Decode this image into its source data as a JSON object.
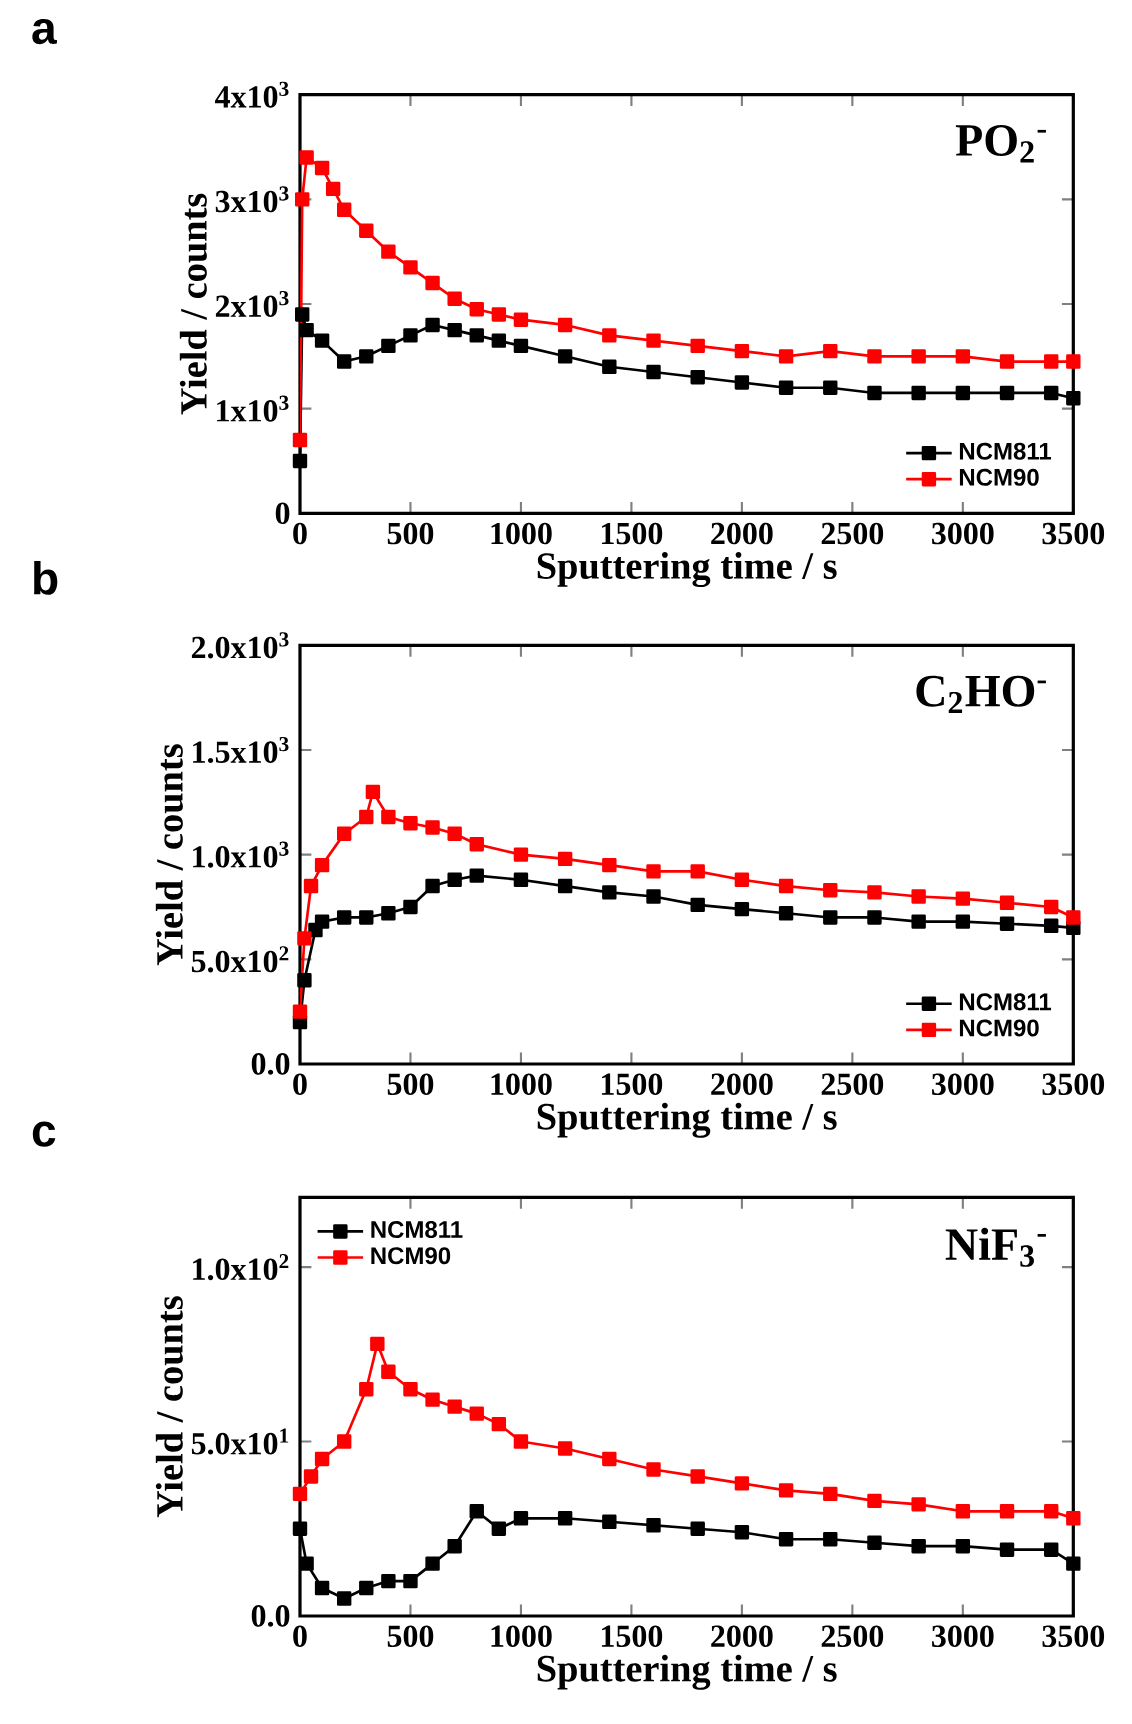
{
  "chart_data": [
    {
      "type": "line",
      "title": "a",
      "xlabel": "Sputtering time / s",
      "ylabel": "Yield / counts",
      "annotations": [
        "PO$_{2}$$^{-}$"
      ],
      "marker": "square",
      "line_style": "solid",
      "legend": "bottom right",
      "xlim": [
        0,
        3500
      ],
      "xticks": [
        0,
        500,
        1000,
        1500,
        2000,
        2500,
        3000,
        3500
      ],
      "ylim": [
        0,
        4000
      ],
      "yticks": [
        {
          "value": 0,
          "label": "0"
        },
        {
          "value": 1000,
          "label": "1x10$^{3}$"
        },
        {
          "value": 2000,
          "label": "2x10$^{3}$"
        },
        {
          "value": 3000,
          "label": "3x10$^{3}$"
        },
        {
          "value": 4000,
          "label": "4x10$^{3}$"
        }
      ],
      "series": [
        {
          "name": "NCM811",
          "color": "#000000",
          "x": [
            0,
            10,
            30,
            100,
            200,
            300,
            400,
            500,
            600,
            700,
            800,
            900,
            1000,
            1200,
            1400,
            1600,
            1800,
            2000,
            2200,
            2400,
            2600,
            2800,
            3000,
            3200,
            3400,
            3500
          ],
          "values": [
            500,
            1900,
            1750,
            1650,
            1450,
            1500,
            1600,
            1700,
            1800,
            1750,
            1700,
            1650,
            1600,
            1500,
            1400,
            1350,
            1300,
            1250,
            1200,
            1200,
            1150,
            1150,
            1150,
            1150,
            1150,
            1100
          ]
        },
        {
          "name": "NCM90",
          "color": "#ff0000",
          "x": [
            0,
            10,
            30,
            100,
            150,
            200,
            300,
            400,
            500,
            600,
            700,
            800,
            900,
            1000,
            1200,
            1400,
            1600,
            1800,
            2000,
            2200,
            2400,
            2600,
            2800,
            3000,
            3200,
            3400,
            3500
          ],
          "values": [
            700,
            3000,
            3400,
            3300,
            3100,
            2900,
            2700,
            2500,
            2350,
            2200,
            2050,
            1950,
            1900,
            1850,
            1800,
            1700,
            1650,
            1600,
            1550,
            1500,
            1550,
            1500,
            1500,
            1500,
            1450,
            1450,
            1450
          ]
        }
      ]
    },
    {
      "type": "line",
      "title": "b",
      "xlabel": "Sputtering time / s",
      "ylabel": "Yield / counts",
      "annotations": [
        "C$_{2}$HO$^{-}$"
      ],
      "marker": "square",
      "line_style": "solid",
      "legend": "bottom right",
      "xlim": [
        0,
        3500
      ],
      "xticks": [
        0,
        500,
        1000,
        1500,
        2000,
        2500,
        3000,
        3500
      ],
      "ylim": [
        0,
        2000
      ],
      "yticks": [
        {
          "value": 0,
          "label": "0.0"
        },
        {
          "value": 500,
          "label": "5.0x10$^{2}$"
        },
        {
          "value": 1000,
          "label": "1.0x10$^{3}$"
        },
        {
          "value": 1500,
          "label": "1.5x10$^{3}$"
        },
        {
          "value": 2000,
          "label": "2.0x10$^{3}$"
        }
      ],
      "series": [
        {
          "name": "NCM811",
          "color": "#000000",
          "x": [
            0,
            20,
            70,
            100,
            200,
            300,
            400,
            500,
            600,
            700,
            800,
            1000,
            1200,
            1400,
            1600,
            1800,
            2000,
            2200,
            2400,
            2600,
            2800,
            3000,
            3200,
            3400,
            3500
          ],
          "values": [
            200,
            400,
            640,
            680,
            700,
            700,
            720,
            750,
            850,
            880,
            900,
            880,
            850,
            820,
            800,
            760,
            740,
            720,
            700,
            700,
            680,
            680,
            670,
            660,
            650
          ]
        },
        {
          "name": "NCM90",
          "color": "#ff0000",
          "x": [
            0,
            20,
            50,
            100,
            200,
            300,
            330,
            400,
            500,
            600,
            700,
            800,
            1000,
            1200,
            1400,
            1600,
            1800,
            2000,
            2200,
            2400,
            2600,
            2800,
            3000,
            3200,
            3400,
            3500
          ],
          "values": [
            250,
            600,
            850,
            950,
            1100,
            1180,
            1300,
            1180,
            1150,
            1130,
            1100,
            1050,
            1000,
            980,
            950,
            920,
            920,
            880,
            850,
            830,
            820,
            800,
            790,
            770,
            750,
            700
          ]
        }
      ]
    },
    {
      "type": "line",
      "title": "c",
      "xlabel": "Sputtering time / s",
      "ylabel": "Yield / counts",
      "annotations": [
        "NiF$_{3}$$^{-}$"
      ],
      "marker": "square",
      "line_style": "solid",
      "legend": "top left",
      "xlim": [
        0,
        3500
      ],
      "xticks": [
        0,
        500,
        1000,
        1500,
        2000,
        2500,
        3000,
        3500
      ],
      "ylim": [
        0,
        120
      ],
      "yticks": [
        {
          "value": 0,
          "label": "0.0"
        },
        {
          "value": 50,
          "label": "5.0x10$^{1}$"
        },
        {
          "value": 100,
          "label": "1.0x10$^{2}$"
        }
      ],
      "series": [
        {
          "name": "NCM811",
          "color": "#000000",
          "x": [
            0,
            30,
            100,
            200,
            300,
            400,
            500,
            600,
            700,
            800,
            900,
            1000,
            1200,
            1400,
            1600,
            1800,
            2000,
            2200,
            2400,
            2600,
            2800,
            3000,
            3200,
            3400,
            3500
          ],
          "values": [
            25,
            15,
            8,
            5,
            8,
            10,
            10,
            15,
            20,
            30,
            25,
            28,
            28,
            27,
            26,
            25,
            24,
            22,
            22,
            21,
            20,
            20,
            19,
            19,
            15
          ]
        },
        {
          "name": "NCM90",
          "color": "#ff0000",
          "x": [
            0,
            50,
            100,
            200,
            300,
            350,
            400,
            500,
            600,
            700,
            800,
            900,
            1000,
            1200,
            1400,
            1600,
            1800,
            2000,
            2200,
            2400,
            2600,
            2800,
            3000,
            3200,
            3400,
            3500
          ],
          "values": [
            35,
            40,
            45,
            50,
            65,
            78,
            70,
            65,
            62,
            60,
            58,
            55,
            50,
            48,
            45,
            42,
            40,
            38,
            36,
            35,
            33,
            32,
            30,
            30,
            30,
            28
          ]
        }
      ]
    }
  ]
}
